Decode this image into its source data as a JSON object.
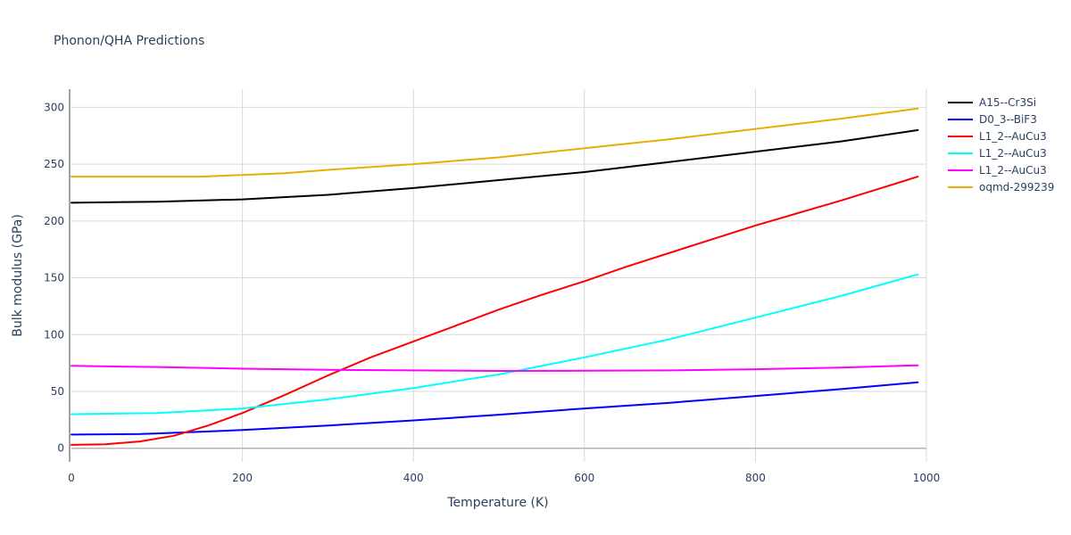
{
  "chart_data": {
    "type": "line",
    "title": "Phonon/QHA Predictions",
    "xlabel": "Temperature (K)",
    "ylabel": "Bulk modulus (GPa)",
    "xlim": [
      0,
      1000
    ],
    "ylim": [
      -12,
      316
    ],
    "xticks": [
      0,
      200,
      400,
      600,
      800,
      1000
    ],
    "yticks": [
      0,
      50,
      100,
      150,
      200,
      250,
      300
    ],
    "grid": true,
    "legend_position": "top-right",
    "series": [
      {
        "name": "A15--Cr3Si",
        "color": "#000000",
        "x": [
          0,
          100,
          200,
          300,
          400,
          500,
          600,
          700,
          800,
          900,
          990
        ],
        "y": [
          216,
          217,
          219,
          223,
          229,
          236,
          243,
          252,
          261,
          270,
          280
        ]
      },
      {
        "name": "D0_3--BiF3",
        "color": "#0000ff",
        "x": [
          0,
          80,
          100,
          200,
          300,
          400,
          500,
          600,
          700,
          800,
          900,
          990
        ],
        "y": [
          12,
          12.5,
          13,
          16,
          20,
          24.5,
          29.5,
          35,
          40,
          46,
          52,
          58
        ]
      },
      {
        "name": "L1_2--AuCu3",
        "color": "#ff0000",
        "x": [
          0,
          40,
          80,
          120,
          160,
          200,
          250,
          300,
          350,
          400,
          450,
          500,
          550,
          600,
          650,
          700,
          800,
          900,
          990
        ],
        "y": [
          3,
          3.5,
          6,
          11,
          20,
          31,
          47,
          64,
          80,
          94,
          108,
          122,
          135,
          147,
          160,
          172,
          196,
          218,
          239
        ]
      },
      {
        "name": "L1_2--AuCu3",
        "color": "#00ffff",
        "x": [
          0,
          100,
          200,
          300,
          400,
          500,
          600,
          700,
          800,
          900,
          990
        ],
        "y": [
          30,
          31,
          35,
          43,
          53,
          65,
          80,
          96,
          115,
          134,
          153
        ]
      },
      {
        "name": "L1_2--AuCu3",
        "color": "#ff00ff",
        "x": [
          0,
          100,
          200,
          300,
          400,
          500,
          600,
          700,
          800,
          900,
          990
        ],
        "y": [
          72.5,
          71.5,
          70,
          69,
          68.5,
          68,
          68.2,
          68.5,
          69.5,
          71,
          73
        ]
      },
      {
        "name": "oqmd-299239",
        "color": "#e6b000",
        "x": [
          0,
          50,
          100,
          150,
          200,
          250,
          300,
          400,
          500,
          600,
          700,
          800,
          900,
          990
        ],
        "y": [
          239,
          239,
          239,
          239,
          240.5,
          242,
          245,
          250,
          256,
          264,
          272,
          281,
          290,
          299
        ]
      }
    ]
  }
}
